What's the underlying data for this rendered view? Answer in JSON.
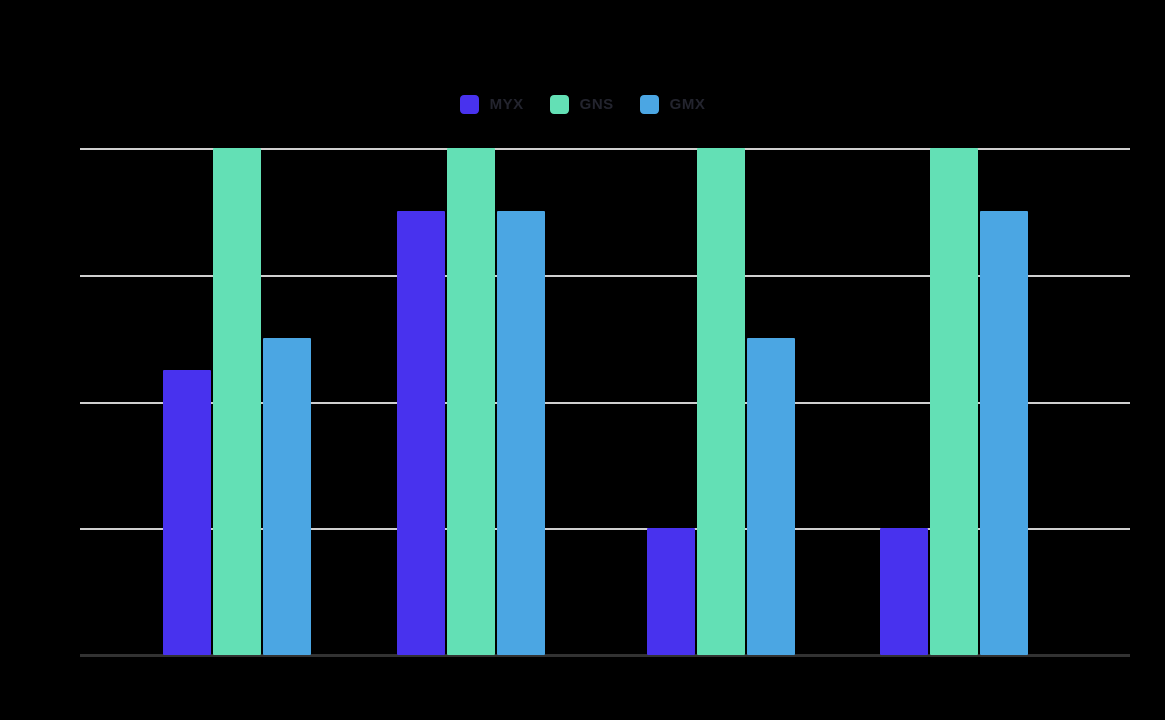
{
  "chart_data": {
    "type": "bar",
    "title": "",
    "categories": [
      "",
      "",
      "",
      ""
    ],
    "series": [
      {
        "name": "MYX",
        "color": "#4832ee",
        "values": [
          2.25,
          3.5,
          1,
          1
        ]
      },
      {
        "name": "GNS",
        "color": "#63e0b5",
        "values": [
          4,
          4,
          4,
          4
        ]
      },
      {
        "name": "GMX",
        "color": "#4ba6e3",
        "values": [
          2.5,
          3.5,
          2.5,
          3.5
        ]
      }
    ],
    "xlabel": "",
    "ylabel": "",
    "ylim": [
      0,
      4
    ],
    "gridlines_horizontal": 5,
    "grid": true,
    "legend_position": "top-center",
    "axis_tick_labels_visible": false
  },
  "legend": {
    "items": [
      {
        "label": "MYX",
        "swatch_color": "#4832ee"
      },
      {
        "label": "GNS",
        "swatch_color": "#63e0b5"
      },
      {
        "label": "GMX",
        "swatch_color": "#4ba6e3"
      }
    ]
  },
  "colors": {
    "background": "#000000",
    "gridline": "#cfcfcf",
    "axis_line": "#323232",
    "legend_text": "#23242e"
  }
}
